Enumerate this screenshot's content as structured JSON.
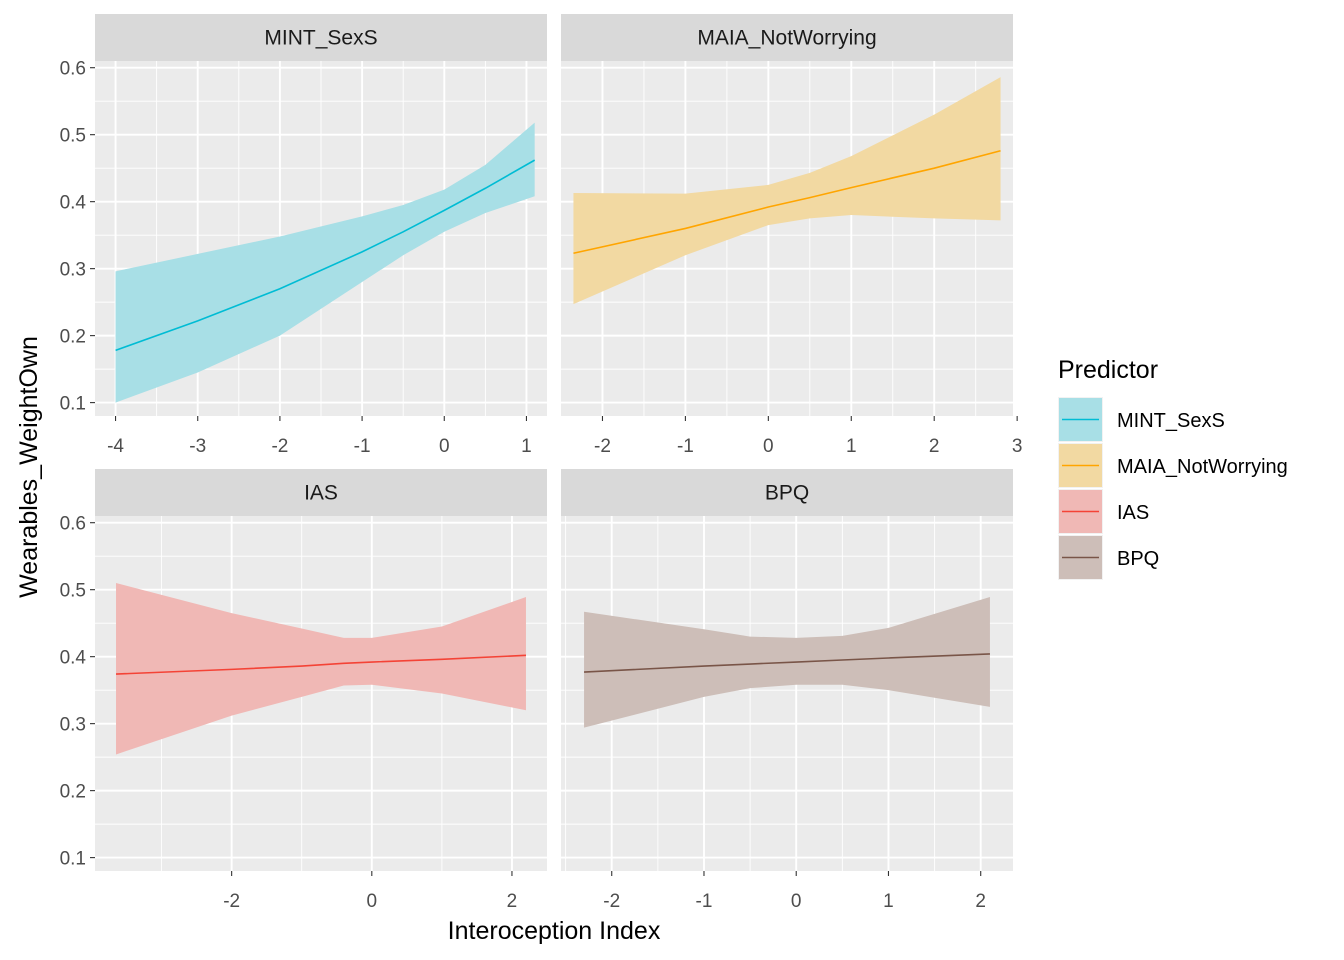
{
  "chart_data": {
    "type": "line",
    "xlabel": "Interoception Index",
    "ylabel": "Wearables_WeightOwn",
    "ylim": [
      0.08,
      0.61
    ],
    "y_ticks": [
      0.1,
      0.2,
      0.3,
      0.4,
      0.5,
      0.6
    ],
    "grid": true,
    "legend": {
      "title": "Predictor",
      "placement": "right",
      "entries": [
        {
          "label": "MINT_SexS",
          "color": "#00BCD4"
        },
        {
          "label": "MAIA_NotWorrying",
          "color": "#FFA500"
        },
        {
          "label": "IAS",
          "color": "#F44336"
        },
        {
          "label": "BPQ",
          "color": "#795548"
        }
      ]
    },
    "panels": [
      {
        "title": "MINT_SexS",
        "color": "#00BCD4",
        "fill_color": "#A8DFE6",
        "xlim": [
          -4.25,
          1.25
        ],
        "x_ticks": [
          -4,
          -3,
          -2,
          -1,
          0,
          1
        ],
        "x": [
          -4.0,
          -3.0,
          -2.0,
          -1.0,
          -0.5,
          0.0,
          0.5,
          1.1
        ],
        "y": [
          0.178,
          0.222,
          0.27,
          0.325,
          0.355,
          0.387,
          0.42,
          0.462
        ],
        "lower": [
          0.1,
          0.145,
          0.2,
          0.28,
          0.32,
          0.355,
          0.383,
          0.408
        ],
        "upper": [
          0.296,
          0.322,
          0.348,
          0.378,
          0.395,
          0.418,
          0.455,
          0.518
        ]
      },
      {
        "title": "MAIA_NotWorrying",
        "color": "#FFA500",
        "fill_color": "#F2D9A2",
        "xlim": [
          -2.5,
          2.95
        ],
        "x_ticks": [
          -2,
          -1,
          0,
          1,
          2,
          3
        ],
        "x": [
          -2.35,
          -1.0,
          0.0,
          0.5,
          1.0,
          2.0,
          2.8
        ],
        "y": [
          0.323,
          0.36,
          0.392,
          0.406,
          0.421,
          0.45,
          0.476
        ],
        "lower": [
          0.247,
          0.32,
          0.365,
          0.375,
          0.38,
          0.375,
          0.372
        ],
        "upper": [
          0.413,
          0.412,
          0.425,
          0.443,
          0.468,
          0.53,
          0.586
        ]
      },
      {
        "title": "IAS",
        "color": "#F44336",
        "fill_color": "#F0B8B5",
        "xlim": [
          -3.95,
          2.5
        ],
        "x_ticks": [
          -2,
          0,
          2
        ],
        "x": [
          -3.65,
          -2.0,
          -1.0,
          -0.4,
          0.0,
          1.0,
          2.2
        ],
        "y": [
          0.374,
          0.381,
          0.386,
          0.39,
          0.392,
          0.396,
          0.402
        ],
        "lower": [
          0.254,
          0.312,
          0.34,
          0.357,
          0.358,
          0.345,
          0.32
        ],
        "upper": [
          0.51,
          0.465,
          0.442,
          0.428,
          0.428,
          0.445,
          0.489
        ]
      },
      {
        "title": "BPQ",
        "color": "#795548",
        "fill_color": "#CDBEB8",
        "xlim": [
          -2.55,
          2.35
        ],
        "x_ticks": [
          -2,
          -1,
          0,
          1,
          2
        ],
        "x": [
          -2.3,
          -1.0,
          -0.5,
          0.0,
          0.5,
          1.0,
          2.1
        ],
        "y": [
          0.377,
          0.386,
          0.389,
          0.392,
          0.395,
          0.398,
          0.404
        ],
        "lower": [
          0.294,
          0.34,
          0.353,
          0.358,
          0.358,
          0.35,
          0.325
        ],
        "upper": [
          0.467,
          0.441,
          0.43,
          0.428,
          0.431,
          0.443,
          0.489
        ]
      }
    ]
  }
}
